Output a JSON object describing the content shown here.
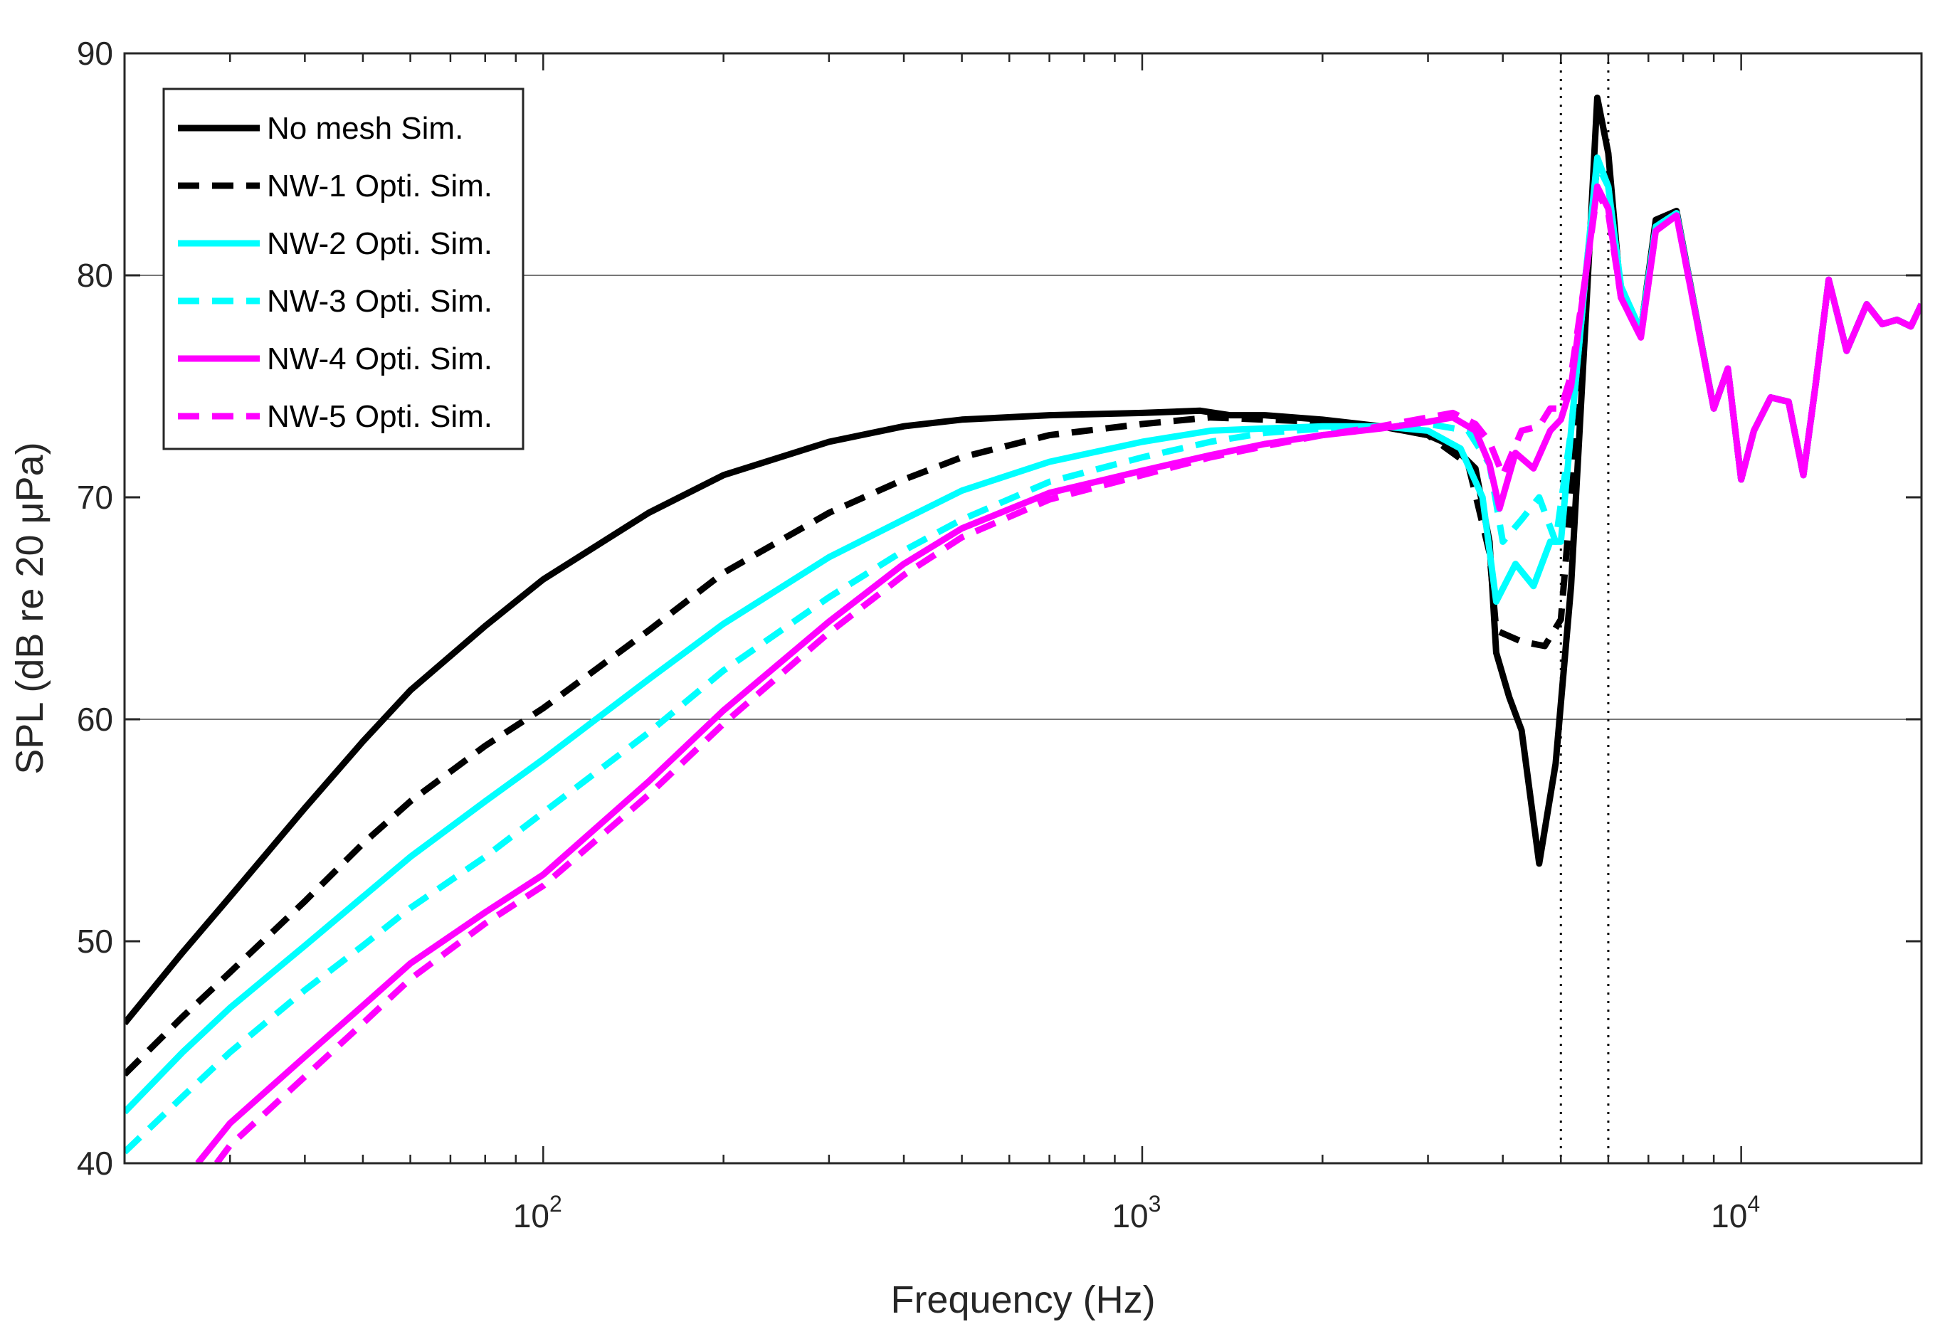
{
  "chart_data": {
    "type": "line",
    "title": "",
    "xlabel": "Frequency (Hz)",
    "ylabel": "SPL (dB re 20 μPa)",
    "xscale": "log",
    "xlim": [
      20,
      20000
    ],
    "ylim": [
      40,
      90
    ],
    "x_ticks": [
      {
        "value": 100,
        "base": "10",
        "exp": "2"
      },
      {
        "value": 1000,
        "base": "10",
        "exp": "3"
      },
      {
        "value": 10000,
        "base": "10",
        "exp": "4"
      }
    ],
    "y_ticks": [
      40,
      50,
      60,
      70,
      80,
      90
    ],
    "grid_y": [
      60,
      80
    ],
    "reference_lines_x": [
      5000,
      6000
    ],
    "legend_position": "top-left",
    "series": [
      {
        "name": "No mesh Sim.",
        "color": "#000000",
        "dash": "solid",
        "points": [
          [
            20,
            46.3
          ],
          [
            25,
            49.5
          ],
          [
            30,
            52
          ],
          [
            40,
            56
          ],
          [
            50,
            59
          ],
          [
            60,
            61.3
          ],
          [
            80,
            64.2
          ],
          [
            100,
            66.3
          ],
          [
            150,
            69.3
          ],
          [
            200,
            71
          ],
          [
            300,
            72.5
          ],
          [
            400,
            73.2
          ],
          [
            500,
            73.5
          ],
          [
            700,
            73.7
          ],
          [
            1000,
            73.8
          ],
          [
            1250,
            73.9
          ],
          [
            1400,
            73.7
          ],
          [
            1600,
            73.7
          ],
          [
            2000,
            73.5
          ],
          [
            2500,
            73.2
          ],
          [
            3000,
            72.8
          ],
          [
            3300,
            72.3
          ],
          [
            3600,
            71.3
          ],
          [
            3800,
            68
          ],
          [
            3900,
            63
          ],
          [
            4100,
            61
          ],
          [
            4300,
            59.5
          ],
          [
            4600,
            53.5
          ],
          [
            4900,
            58
          ],
          [
            5200,
            66
          ],
          [
            5500,
            78
          ],
          [
            5750,
            88
          ],
          [
            6000,
            85.5
          ],
          [
            6300,
            79
          ],
          [
            6800,
            77.5
          ],
          [
            7200,
            82.5
          ],
          [
            7800,
            82.9
          ],
          [
            9000,
            74
          ],
          [
            9500,
            75.8
          ],
          [
            10000,
            70.8
          ],
          [
            10500,
            73
          ],
          [
            11200,
            74.5
          ],
          [
            12000,
            74.3
          ],
          [
            12700,
            71
          ],
          [
            13300,
            75
          ],
          [
            14000,
            79.8
          ],
          [
            15000,
            76.6
          ],
          [
            16200,
            78.7
          ],
          [
            17200,
            77.8
          ],
          [
            18200,
            78
          ],
          [
            19200,
            77.7
          ],
          [
            20000,
            78.7
          ]
        ]
      },
      {
        "name": "NW-1 Opti. Sim.",
        "color": "#000000",
        "dash": "dashed",
        "points": [
          [
            20,
            44
          ],
          [
            25,
            46.6
          ],
          [
            30,
            48.6
          ],
          [
            40,
            51.8
          ],
          [
            50,
            54.4
          ],
          [
            60,
            56.3
          ],
          [
            80,
            58.8
          ],
          [
            100,
            60.5
          ],
          [
            150,
            64
          ],
          [
            200,
            66.6
          ],
          [
            300,
            69.3
          ],
          [
            400,
            70.8
          ],
          [
            500,
            71.8
          ],
          [
            700,
            72.8
          ],
          [
            1000,
            73.3
          ],
          [
            1300,
            73.6
          ],
          [
            1600,
            73.5
          ],
          [
            2000,
            73.4
          ],
          [
            2500,
            73.2
          ],
          [
            3000,
            72.8
          ],
          [
            3500,
            71.5
          ],
          [
            3800,
            67.5
          ],
          [
            3900,
            64
          ],
          [
            4300,
            63.5
          ],
          [
            4700,
            63.3
          ],
          [
            5000,
            64.5
          ],
          [
            5200,
            70
          ],
          [
            5500,
            80
          ],
          [
            5750,
            85
          ],
          [
            6000,
            84.5
          ],
          [
            6300,
            79
          ],
          [
            6800,
            77.5
          ],
          [
            7200,
            82.4
          ],
          [
            7800,
            82.8
          ],
          [
            9000,
            74
          ],
          [
            9500,
            75.8
          ],
          [
            10000,
            70.8
          ],
          [
            10500,
            73
          ],
          [
            11200,
            74.5
          ],
          [
            12000,
            74.3
          ],
          [
            12700,
            71
          ],
          [
            13300,
            75
          ],
          [
            14000,
            79.8
          ],
          [
            15000,
            76.6
          ],
          [
            16200,
            78.7
          ],
          [
            17200,
            77.8
          ],
          [
            18200,
            78
          ],
          [
            19200,
            77.7
          ],
          [
            20000,
            78.7
          ]
        ]
      },
      {
        "name": "NW-2 Opti. Sim.",
        "color": "#00FFFF",
        "dash": "solid",
        "points": [
          [
            20,
            42.3
          ],
          [
            25,
            45
          ],
          [
            30,
            47
          ],
          [
            40,
            49.8
          ],
          [
            50,
            52
          ],
          [
            60,
            53.8
          ],
          [
            80,
            56.3
          ],
          [
            100,
            58.2
          ],
          [
            150,
            61.8
          ],
          [
            200,
            64.3
          ],
          [
            300,
            67.3
          ],
          [
            400,
            69
          ],
          [
            500,
            70.3
          ],
          [
            700,
            71.6
          ],
          [
            1000,
            72.5
          ],
          [
            1300,
            73
          ],
          [
            1600,
            73.1
          ],
          [
            2000,
            73.2
          ],
          [
            2500,
            73.2
          ],
          [
            3000,
            73
          ],
          [
            3400,
            72.2
          ],
          [
            3700,
            70
          ],
          [
            3900,
            65.3
          ],
          [
            4200,
            67
          ],
          [
            4500,
            66
          ],
          [
            4800,
            68
          ],
          [
            5000,
            68
          ],
          [
            5200,
            73
          ],
          [
            5500,
            80
          ],
          [
            5750,
            85.3
          ],
          [
            6000,
            84
          ],
          [
            6300,
            79.5
          ],
          [
            6800,
            77.5
          ],
          [
            7200,
            82.2
          ],
          [
            7800,
            82.8
          ],
          [
            9000,
            74
          ],
          [
            9500,
            75.8
          ],
          [
            10000,
            70.8
          ],
          [
            10500,
            73
          ],
          [
            11200,
            74.5
          ],
          [
            12000,
            74.3
          ],
          [
            12700,
            71
          ],
          [
            13300,
            75
          ],
          [
            14000,
            79.8
          ],
          [
            15000,
            76.6
          ],
          [
            16200,
            78.7
          ],
          [
            17200,
            77.8
          ],
          [
            18200,
            78
          ],
          [
            19200,
            77.7
          ],
          [
            20000,
            78.7
          ]
        ]
      },
      {
        "name": "NW-3 Opti. Sim.",
        "color": "#00FFFF",
        "dash": "dashed",
        "points": [
          [
            20,
            40.5
          ],
          [
            25,
            43
          ],
          [
            30,
            45
          ],
          [
            40,
            47.8
          ],
          [
            50,
            49.8
          ],
          [
            60,
            51.5
          ],
          [
            80,
            53.8
          ],
          [
            100,
            55.8
          ],
          [
            150,
            59.4
          ],
          [
            200,
            62.2
          ],
          [
            300,
            65.5
          ],
          [
            400,
            67.6
          ],
          [
            500,
            69
          ],
          [
            700,
            70.7
          ],
          [
            1000,
            71.8
          ],
          [
            1300,
            72.5
          ],
          [
            1600,
            72.9
          ],
          [
            2000,
            73.1
          ],
          [
            2500,
            73.2
          ],
          [
            3000,
            73.3
          ],
          [
            3500,
            73
          ],
          [
            3800,
            71.5
          ],
          [
            4000,
            68
          ],
          [
            4300,
            69
          ],
          [
            4600,
            70
          ],
          [
            4900,
            68
          ],
          [
            5200,
            73
          ],
          [
            5500,
            80
          ],
          [
            5750,
            85
          ],
          [
            6000,
            84
          ],
          [
            6300,
            79.5
          ],
          [
            6800,
            77.5
          ],
          [
            7200,
            82.2
          ],
          [
            7800,
            82.8
          ],
          [
            9000,
            74
          ],
          [
            9500,
            75.8
          ],
          [
            10000,
            70.8
          ],
          [
            10500,
            73
          ],
          [
            11200,
            74.5
          ],
          [
            12000,
            74.3
          ],
          [
            12700,
            71
          ],
          [
            13300,
            75
          ],
          [
            14000,
            79.8
          ],
          [
            15000,
            76.6
          ],
          [
            16200,
            78.7
          ],
          [
            17200,
            77.8
          ],
          [
            18200,
            78
          ],
          [
            19200,
            77.7
          ],
          [
            20000,
            78.7
          ]
        ]
      },
      {
        "name": "NW-4 Opti. Sim.",
        "color": "#FF00FF",
        "dash": "solid",
        "points": [
          [
            26.5,
            40
          ],
          [
            30,
            41.8
          ],
          [
            40,
            44.8
          ],
          [
            50,
            47.1
          ],
          [
            60,
            49
          ],
          [
            80,
            51.3
          ],
          [
            100,
            53
          ],
          [
            150,
            57.2
          ],
          [
            200,
            60.4
          ],
          [
            300,
            64.4
          ],
          [
            400,
            67
          ],
          [
            500,
            68.6
          ],
          [
            700,
            70.2
          ],
          [
            1000,
            71.2
          ],
          [
            1300,
            71.9
          ],
          [
            1600,
            72.4
          ],
          [
            2000,
            72.8
          ],
          [
            2500,
            73.1
          ],
          [
            3000,
            73.4
          ],
          [
            3300,
            73.6
          ],
          [
            3600,
            73
          ],
          [
            3800,
            71.5
          ],
          [
            3950,
            69.5
          ],
          [
            4200,
            72
          ],
          [
            4500,
            71.3
          ],
          [
            4800,
            73
          ],
          [
            5000,
            73.5
          ],
          [
            5200,
            75
          ],
          [
            5500,
            80
          ],
          [
            5750,
            84
          ],
          [
            6000,
            83
          ],
          [
            6300,
            79
          ],
          [
            6800,
            77.2
          ],
          [
            7200,
            82
          ],
          [
            7800,
            82.7
          ],
          [
            9000,
            74
          ],
          [
            9500,
            75.8
          ],
          [
            10000,
            70.8
          ],
          [
            10500,
            73
          ],
          [
            11200,
            74.5
          ],
          [
            12000,
            74.3
          ],
          [
            12700,
            71
          ],
          [
            13300,
            75
          ],
          [
            14000,
            79.8
          ],
          [
            15000,
            76.6
          ],
          [
            16200,
            78.7
          ],
          [
            17200,
            77.8
          ],
          [
            18200,
            78
          ],
          [
            19200,
            77.7
          ],
          [
            20000,
            78.7
          ]
        ]
      },
      {
        "name": "NW-5 Opti. Sim.",
        "color": "#FF00FF",
        "dash": "dashed",
        "points": [
          [
            28.5,
            40
          ],
          [
            30,
            40.8
          ],
          [
            40,
            43.9
          ],
          [
            50,
            46.3
          ],
          [
            60,
            48.3
          ],
          [
            80,
            50.8
          ],
          [
            100,
            52.5
          ],
          [
            150,
            56.6
          ],
          [
            200,
            59.8
          ],
          [
            300,
            63.9
          ],
          [
            400,
            66.5
          ],
          [
            500,
            68.2
          ],
          [
            700,
            69.9
          ],
          [
            1000,
            71
          ],
          [
            1300,
            71.8
          ],
          [
            1600,
            72.3
          ],
          [
            2000,
            72.8
          ],
          [
            2500,
            73.2
          ],
          [
            3000,
            73.6
          ],
          [
            3300,
            73.8
          ],
          [
            3600,
            73.3
          ],
          [
            3800,
            72.5
          ],
          [
            4000,
            71
          ],
          [
            4300,
            73
          ],
          [
            4600,
            73.2
          ],
          [
            4800,
            74
          ],
          [
            5000,
            74
          ],
          [
            5200,
            75.5
          ],
          [
            5500,
            80
          ],
          [
            5750,
            83.8
          ],
          [
            6000,
            82.8
          ],
          [
            6300,
            79
          ],
          [
            6800,
            77.2
          ],
          [
            7200,
            82
          ],
          [
            7800,
            82.7
          ],
          [
            9000,
            74
          ],
          [
            9500,
            75.8
          ],
          [
            10000,
            70.8
          ],
          [
            10500,
            73
          ],
          [
            11200,
            74.5
          ],
          [
            12000,
            74.3
          ],
          [
            12700,
            71
          ],
          [
            13300,
            75
          ],
          [
            14000,
            79.8
          ],
          [
            15000,
            76.6
          ],
          [
            16200,
            78.7
          ],
          [
            17200,
            77.8
          ],
          [
            18200,
            78
          ],
          [
            19200,
            77.7
          ],
          [
            20000,
            78.7
          ]
        ]
      }
    ]
  }
}
